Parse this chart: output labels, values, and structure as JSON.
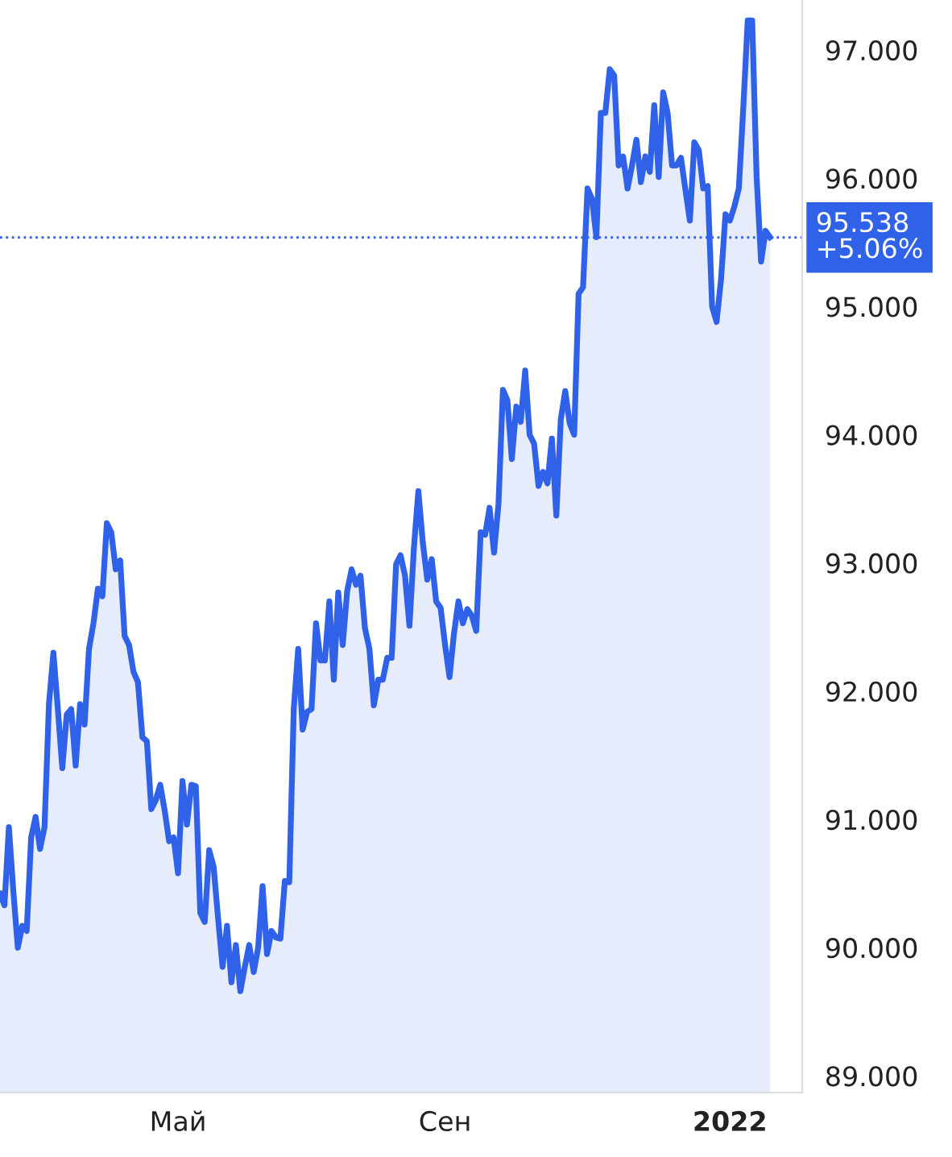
{
  "chart_data": {
    "type": "area",
    "color": "#2f62e8",
    "categories": [
      null,
      null,
      null,
      null,
      null,
      null,
      null,
      null,
      null,
      null,
      null,
      null,
      null,
      null,
      null,
      null,
      null,
      null,
      null,
      null,
      null,
      null,
      null,
      null,
      null,
      null,
      null,
      null,
      null,
      null,
      null,
      null,
      null,
      null,
      null,
      null,
      null,
      null,
      null,
      null,
      "Май",
      null,
      null,
      null,
      null,
      null,
      null,
      null,
      null,
      null,
      null,
      null,
      null,
      null,
      null,
      null,
      null,
      null,
      null,
      null,
      null,
      null,
      null,
      null,
      null,
      null,
      null,
      null,
      null,
      null,
      null,
      null,
      null,
      null,
      null,
      null,
      null,
      null,
      null,
      null,
      null,
      null,
      null,
      null,
      null,
      null,
      null,
      null,
      null,
      null,
      null,
      null,
      null,
      null,
      null,
      null,
      null,
      null,
      null,
      null,
      "Сен",
      null,
      null,
      null,
      null,
      null,
      null,
      null,
      null,
      null,
      null,
      null,
      null,
      null,
      null,
      null,
      null,
      null,
      null,
      null,
      null,
      null,
      null,
      null,
      null,
      null,
      null,
      null,
      null,
      null,
      null,
      null,
      null,
      null,
      null,
      null,
      null,
      null,
      null,
      null,
      null,
      null,
      null,
      null,
      null,
      null,
      null,
      null,
      null,
      null,
      null,
      null,
      null,
      null,
      null,
      null,
      null,
      null,
      null,
      null,
      null,
      null,
      null,
      null,
      "2022",
      null,
      null,
      null,
      null,
      null,
      null,
      null,
      null,
      null
    ],
    "values": [
      90.42,
      90.33,
      90.94,
      90.44,
      90.0,
      90.17,
      90.13,
      90.86,
      91.02,
      90.77,
      90.94,
      91.9,
      92.3,
      91.86,
      91.4,
      91.82,
      91.86,
      91.42,
      91.9,
      91.74,
      92.33,
      92.53,
      92.8,
      92.74,
      93.31,
      93.24,
      92.95,
      93.02,
      92.43,
      92.36,
      92.15,
      92.07,
      91.64,
      91.61,
      91.08,
      91.15,
      91.27,
      91.07,
      90.83,
      90.86,
      90.58,
      91.3,
      90.96,
      91.27,
      91.26,
      90.27,
      90.2,
      90.76,
      90.63,
      90.23,
      89.85,
      90.17,
      89.73,
      90.02,
      89.66,
      89.85,
      90.02,
      89.81,
      90.0,
      90.48,
      89.95,
      90.13,
      90.08,
      90.07,
      90.52,
      90.51,
      91.86,
      92.33,
      91.7,
      91.84,
      91.86,
      92.53,
      92.24,
      92.24,
      92.7,
      92.09,
      92.77,
      92.36,
      92.78,
      92.95,
      92.83,
      92.9,
      92.49,
      92.33,
      91.89,
      92.09,
      92.09,
      92.26,
      92.26,
      92.99,
      93.06,
      92.9,
      92.51,
      93.12,
      93.56,
      93.16,
      92.87,
      93.03,
      92.7,
      92.65,
      92.36,
      92.11,
      92.45,
      92.7,
      92.53,
      92.64,
      92.59,
      92.47,
      93.24,
      93.22,
      93.43,
      93.08,
      93.46,
      94.35,
      94.27,
      93.81,
      94.22,
      94.1,
      94.5,
      94.0,
      93.93,
      93.6,
      93.71,
      93.62,
      93.97,
      93.37,
      94.12,
      94.34,
      94.09,
      94.0,
      95.1,
      95.15,
      95.92,
      95.84,
      95.54,
      96.51,
      96.51,
      96.85,
      96.8,
      96.1,
      96.17,
      95.92,
      96.1,
      96.3,
      95.97,
      96.17,
      96.05,
      96.57,
      96.01,
      96.67,
      96.51,
      96.1,
      96.1,
      96.16,
      95.91,
      95.67,
      96.28,
      96.22,
      95.92,
      95.94,
      95.0,
      94.88,
      95.21,
      95.72,
      95.67,
      95.78,
      95.92,
      96.55,
      97.23,
      97.23,
      96.01,
      95.35,
      95.59,
      95.54
    ],
    "ylim": [
      88.87,
      97.39
    ],
    "yticks": [
      {
        "value": 89,
        "label": "89.000"
      },
      {
        "value": 90,
        "label": "90.000"
      },
      {
        "value": 91,
        "label": "91.000"
      },
      {
        "value": 92,
        "label": "92.000"
      },
      {
        "value": 93,
        "label": "93.000"
      },
      {
        "value": 94,
        "label": "94.000"
      },
      {
        "value": 95,
        "label": "95.000"
      },
      {
        "value": 96,
        "label": "96.000"
      },
      {
        "value": 97,
        "label": "97.000"
      }
    ],
    "ref_lines": [
      {
        "axis": "y",
        "value": 95.538,
        "label": "95.538",
        "color": "#2f62e8",
        "line_style": "dotted"
      }
    ],
    "annotations": [
      "+5.06%"
    ],
    "grid": false,
    "legend": false,
    "marker": "none",
    "line_style": "solid"
  }
}
